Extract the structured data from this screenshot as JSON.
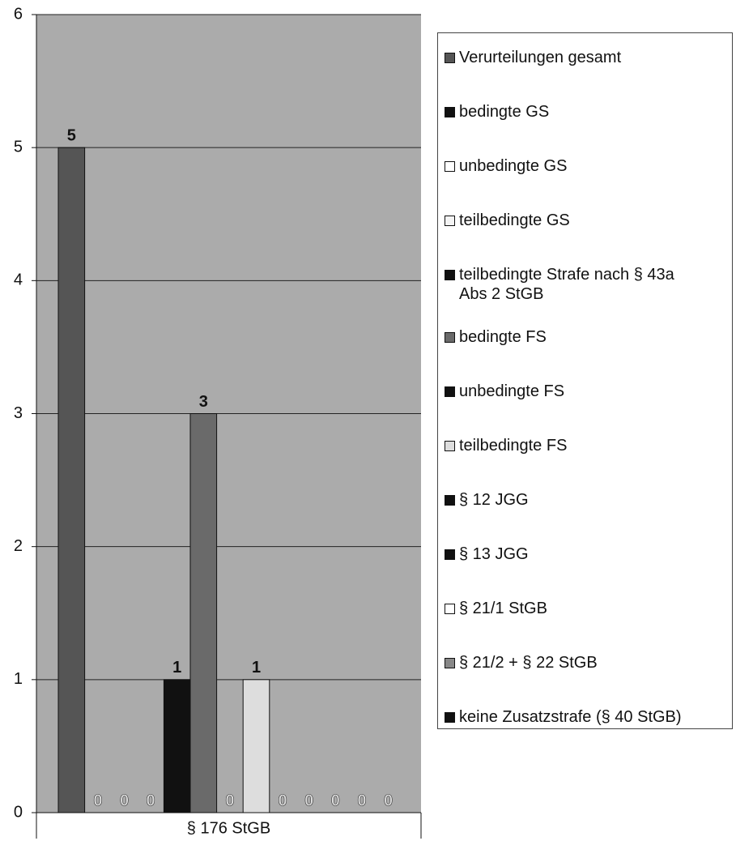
{
  "chart_data": {
    "type": "bar",
    "categories": [
      "§ 176 StGB"
    ],
    "series": [
      {
        "name": "Verurteilungen gesamt",
        "color": "#555555",
        "values": [
          5
        ]
      },
      {
        "name": "bedingte GS",
        "color": "#111111",
        "values": [
          0
        ]
      },
      {
        "name": "unbedingte GS",
        "color": "#ffffff",
        "values": [
          0
        ]
      },
      {
        "name": "teilbedingte GS",
        "color": "#f4f4f4",
        "values": [
          0
        ]
      },
      {
        "name": "teilbedingte Strafe nach § 43a Abs 2 StGB",
        "color": "#111111",
        "values": [
          1
        ]
      },
      {
        "name": "bedingte FS",
        "color": "#6a6a6a",
        "values": [
          3
        ]
      },
      {
        "name": "unbedingte FS",
        "color": "#111111",
        "values": [
          0
        ]
      },
      {
        "name": "teilbedingte FS",
        "color": "#dddddd",
        "values": [
          1
        ]
      },
      {
        "name": "§ 12 JGG",
        "color": "#111111",
        "values": [
          0
        ]
      },
      {
        "name": "§ 13 JGG",
        "color": "#111111",
        "values": [
          0
        ]
      },
      {
        "name": "§ 21/1 StGB",
        "color": "#ffffff",
        "values": [
          0
        ]
      },
      {
        "name": "§ 21/2 + § 22 StGB",
        "color": "#888888",
        "values": [
          0
        ]
      },
      {
        "name": "keine Zusatzstrafe (§ 40 StGB)",
        "color": "#111111",
        "values": [
          0
        ]
      }
    ],
    "ylim": [
      0,
      6
    ],
    "yticks": [
      0,
      1,
      2,
      3,
      4,
      5,
      6
    ],
    "grid": true,
    "legend": "right"
  }
}
